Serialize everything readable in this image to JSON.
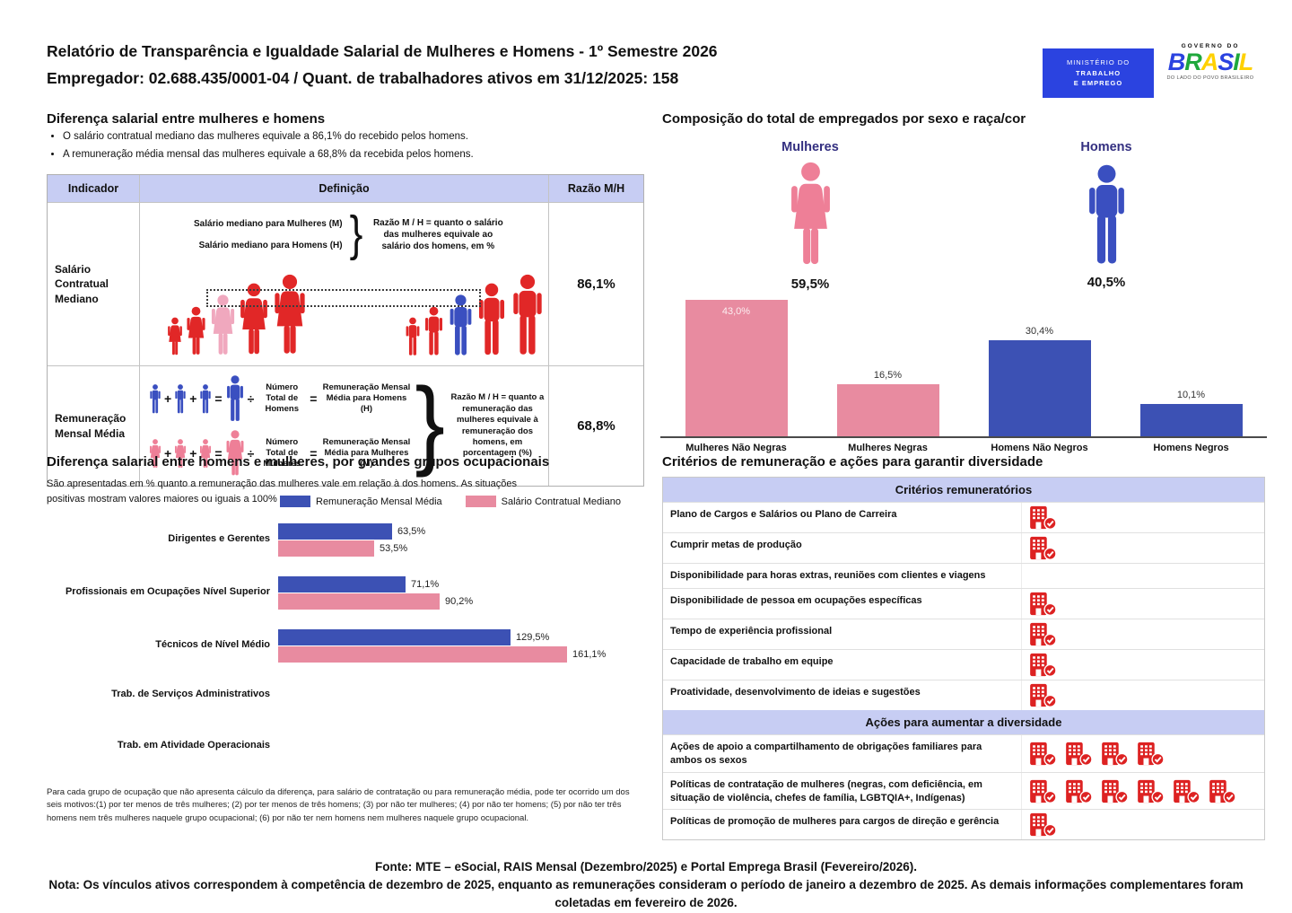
{
  "header": {
    "title_line1": "Relatório de Transparência e Igualdade Salarial de Mulheres e Homens - 1º Semestre 2026",
    "title_line2": "Empregador: 02.688.435/0001-04 / Quant. de trabalhadores ativos em 31/12/2025: 158",
    "logo_mte": {
      "line1": "MINISTÉRIO DO",
      "line2": "TRABALHO",
      "line3": "E EMPREGO"
    },
    "logo_brasil": {
      "top": "GOVERNO DO",
      "word": "BRASIL",
      "bottom": "DO LADO DO POVO BRASILEIRO"
    }
  },
  "salary_gap": {
    "title": "Diferença salarial entre mulheres e homens",
    "bullets": [
      "O salário contratual mediano das mulheres equivale a 86,1% do recebido pelos homens.",
      "A remuneração média mensal das mulheres equivale a 68,8% da recebida pelos homens."
    ],
    "operators": {
      "plus": "+",
      "equals": "=",
      "divide": "÷",
      "brace": "}"
    },
    "table": {
      "headers": [
        "Indicador",
        "Definição",
        "Razão M/H"
      ],
      "rows": [
        {
          "indicator": "Salário Contratual Mediano",
          "line_women": "Salário mediano para Mulheres (M)",
          "line_men": "Salário mediano para Homens (H)",
          "note": "Razão M / H = quanto o salário das mulheres equivale ao salário dos homens, em %",
          "ratio": "86,1%"
        },
        {
          "indicator": "Remuneração Mensal Média",
          "men_divisor": "Número Total de Homens",
          "men_result": "Remuneração Mensal Média para Homens (H)",
          "women_divisor": "Número Total de Mulheres",
          "women_result": "Remuneração Mensal Média para Mulheres (M)",
          "note": "Razão M / H = quanto a remuneração das mulheres equivale à remuneração dos homens, em porcentagem (%)",
          "ratio": "68,8%"
        }
      ]
    }
  },
  "composition": {
    "title": "Composição do total de empregados por sexo e raça/cor",
    "women_label": "Mulheres",
    "women_pct": "59,5%",
    "men_label": "Homens",
    "men_pct": "40,5%"
  },
  "occupation": {
    "title": "Diferença salarial entre homens e mulheres, por grandes grupos ocupacionais",
    "subtitle": "São apresentadas em % quanto a remuneração das mulheres vale em relação à dos homens. As situações positivas mostram valores maiores ou iguais a 100%",
    "footnote": "Para cada grupo de ocupação que não apresenta cálculo da diferença, para salário de contratação ou para remuneração média, pode ter ocorrido um dos seis motivos:(1) por ter menos de três mulheres; (2) por ter menos de três homens; (3) por não ter mulheres; (4) por não ter homens; (5) por não ter três homens nem três mulheres naquele grupo ocupacional; (6) por não ter nem homens nem mulheres naquele grupo ocupacional."
  },
  "chart_data": [
    {
      "id": "composition-by-race",
      "type": "bar",
      "title": "Composição do total de empregados por sexo e raça/cor",
      "categories": [
        "Mulheres Não Negras",
        "Mulheres Negras",
        "Homens Não Negros",
        "Homens Negros"
      ],
      "values": [
        43.0,
        16.5,
        30.4,
        10.1
      ],
      "value_labels": [
        "43,0%",
        "16,5%",
        "30,4%",
        "10,1%"
      ],
      "label_inside": [
        true,
        false,
        false,
        false
      ],
      "colors": [
        "#e88ba0",
        "#e88ba0",
        "#3c51b4",
        "#3c51b4"
      ],
      "ylim": [
        0,
        45
      ],
      "grid": false,
      "totals": {
        "Mulheres": "59,5%",
        "Homens": "40,5%"
      }
    },
    {
      "id": "gap-by-occupation-group",
      "type": "bar-horizontal",
      "title": "Diferença salarial entre homens e mulheres, por grandes grupos ocupacionais",
      "categories": [
        "Dirigentes e Gerentes",
        "Profissionais em Ocupações Nível Superior",
        "Técnicos de Nível Médio",
        "Trab. de Serviços Administrativos",
        "Trab. em Atividade Operacionais"
      ],
      "series": [
        {
          "name": "Remuneração Mensal Média",
          "color": "#3c51b4",
          "values": [
            63.5,
            71.1,
            129.5,
            null,
            null
          ],
          "value_labels": [
            "63,5%",
            "71,1%",
            "129,5%",
            "",
            ""
          ]
        },
        {
          "name": "Salário Contratual Mediano",
          "color": "#e88ba0",
          "values": [
            53.5,
            90.2,
            161.1,
            null,
            null
          ],
          "value_labels": [
            "53,5%",
            "90,2%",
            "161,1%",
            "",
            ""
          ]
        }
      ],
      "xlim": [
        0,
        170
      ],
      "grid": false,
      "legend_position": "top"
    }
  ],
  "criteria": {
    "title": "Critérios de remuneração e ações para garantir diversidade",
    "sections": [
      {
        "header": "Critérios remuneratórios",
        "rows": [
          {
            "label": "Plano de Cargos e Salários ou Plano de Carreira",
            "icons": 1
          },
          {
            "label": "Cumprir metas de produção",
            "icons": 1
          },
          {
            "label": "Disponibilidade para horas extras, reuniões com clientes e viagens",
            "icons": 0
          },
          {
            "label": "Disponibilidade de pessoa em ocupações específicas",
            "icons": 1
          },
          {
            "label": "Tempo de experiência profissional",
            "icons": 1
          },
          {
            "label": "Capacidade de trabalho em equipe",
            "icons": 1
          },
          {
            "label": "Proatividade, desenvolvimento de ideias e sugestões",
            "icons": 1
          }
        ]
      },
      {
        "header": "Ações para aumentar a diversidade",
        "rows": [
          {
            "label": "Ações de apoio a compartilhamento de obrigações familiares para ambos os sexos",
            "icons": 4
          },
          {
            "label": "Políticas de contratação de mulheres (negras, com deficiência, em situação de violência, chefes de família, LGBTQIA+, Indígenas)",
            "icons": 6
          },
          {
            "label": "Políticas de promoção de mulheres para cargos de direção e gerência",
            "icons": 1
          }
        ]
      }
    ]
  },
  "footer": {
    "fonte": "Fonte: MTE – eSocial, RAIS Mensal (Dezembro/2025) e Portal Emprega Brasil (Fevereiro/2026).",
    "nota": "Nota: Os vínculos ativos correspondem à competência de dezembro de 2025, enquanto as remunerações consideram o período de janeiro a dezembro de 2025. As demais informações complementares foram coletadas em fevereiro de 2026."
  },
  "colors": {
    "pink": "#e88ba0",
    "blue": "#3c51b4",
    "red": "#e12727",
    "pink_highlight": "#f0a8be",
    "blue_highlight": "#3a4fc0",
    "table_header_fill": "#c7cdf3",
    "label_indigo": "#332f80",
    "mte_logo_blue": "#2b43e0",
    "brasil_letter_colors": [
      "#2b43e0",
      "#1fa83c",
      "#ffd100",
      "#2b43e0",
      "#1fa83c",
      "#ffd100"
    ]
  }
}
